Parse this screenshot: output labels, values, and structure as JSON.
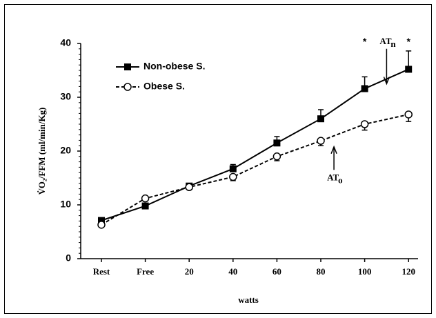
{
  "chart_data": {
    "type": "line",
    "y_label": "V̇O₂/FFM (ml/min/Kg)",
    "x_label": "watts",
    "categories": [
      "Rest",
      "Free",
      "20",
      "40",
      "60",
      "80",
      "100",
      "120"
    ],
    "ylim": [
      0,
      40
    ],
    "yticks": [
      0,
      10,
      20,
      30,
      40
    ],
    "legend": "top-left",
    "series": [
      {
        "name": "Non-obese S.",
        "color": "#000000",
        "marker": "square",
        "dash": false,
        "values": [
          7.1,
          9.8,
          13.5,
          16.7,
          21.5,
          26.0,
          31.6,
          35.2
        ],
        "errors": [
          0.4,
          0.4,
          0.4,
          0.8,
          1.2,
          1.7,
          2.2,
          3.4
        ]
      },
      {
        "name": "Obese S.",
        "color": "#000000",
        "marker": "circle",
        "dash": true,
        "values": [
          6.3,
          11.2,
          13.3,
          15.2,
          19.0,
          21.9,
          25.0,
          26.8
        ],
        "errors": [
          0.4,
          0.4,
          0.4,
          0.7,
          0.8,
          0.9,
          1.1,
          1.3
        ]
      }
    ],
    "annotations": [
      {
        "text": "AT",
        "sub": "o",
        "category": 5.3,
        "from": 16.5,
        "to": 20.8
      },
      {
        "text": "AT",
        "sub": "n",
        "category": 6.5,
        "from": 39,
        "to": 32.5
      },
      {
        "text": "*",
        "category": 6,
        "at": 40.7
      },
      {
        "text": "*",
        "category": 7,
        "at": 40.7
      }
    ]
  }
}
